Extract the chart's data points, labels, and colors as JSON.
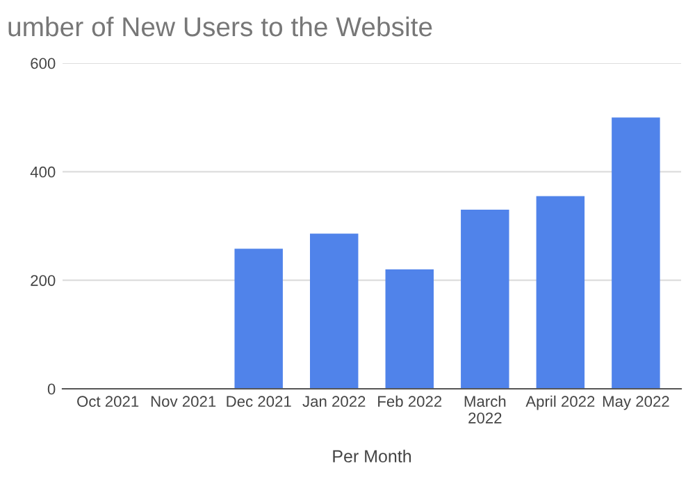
{
  "chart_data": {
    "type": "bar",
    "title": "umber of New Users to the Website",
    "xlabel": "Per Month",
    "categories": [
      "Oct 2021",
      "Nov 2021",
      "Dec 2021",
      "Jan 2022",
      "Feb 2022",
      "March\n2022",
      "April 2022",
      "May 2022"
    ],
    "values": [
      0,
      0,
      258,
      286,
      220,
      330,
      355,
      500
    ],
    "color": "#5083ea",
    "ylim": [
      0,
      600
    ],
    "yticks": [
      0,
      200,
      400,
      600
    ],
    "grid": "y",
    "legend": false
  }
}
